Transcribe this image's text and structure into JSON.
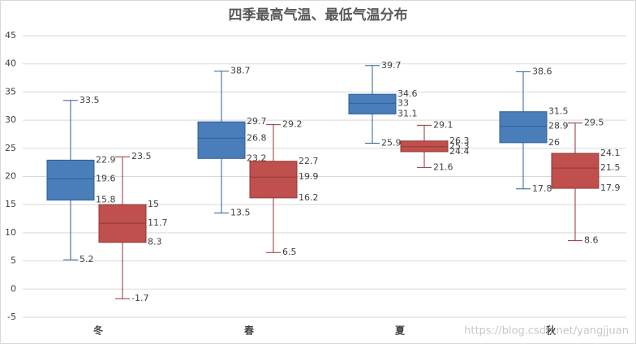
{
  "chart_data": {
    "type": "box",
    "title": "四季最高气温、最低气温分布",
    "categories": [
      "冬",
      "春",
      "夏",
      "秋"
    ],
    "series": [
      {
        "color": "#4a7ebb",
        "max": [
          33.5,
          38.7,
          39.7,
          38.6
        ],
        "q3": [
          22.9,
          29.7,
          34.6,
          31.5
        ],
        "median": [
          19.6,
          26.8,
          33,
          28.9
        ],
        "q1": [
          15.8,
          23.2,
          31.1,
          26
        ],
        "min": [
          5.2,
          13.5,
          25.9,
          17.8
        ]
      },
      {
        "color": "#c0504d",
        "max": [
          23.5,
          29.2,
          29.1,
          29.5
        ],
        "q3": [
          15,
          22.7,
          26.3,
          24.1
        ],
        "median": [
          11.7,
          19.9,
          25.3,
          21.5
        ],
        "q1": [
          8.3,
          16.2,
          24.4,
          17.9
        ],
        "min": [
          -1.7,
          6.5,
          21.6,
          8.6
        ]
      }
    ],
    "ylim": [
      -5,
      45
    ],
    "yticks": [
      -5,
      0,
      5,
      10,
      15,
      20,
      25,
      30,
      35,
      40,
      45
    ],
    "grid": true,
    "watermark": "https://blog.csdn.net/yangjjuan"
  }
}
